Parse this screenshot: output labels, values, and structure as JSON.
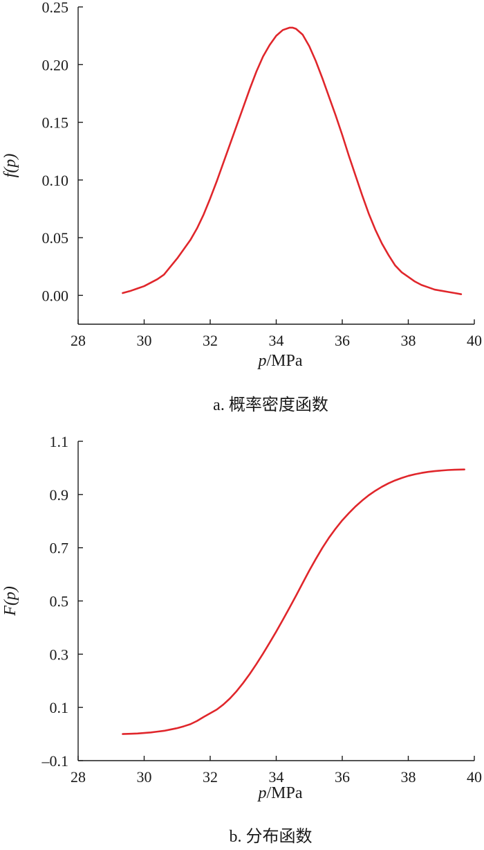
{
  "chart_data": [
    {
      "type": "line",
      "caption": "a. 概率密度函数",
      "xlabel_var": "p",
      "xlabel_unit": "/MPa",
      "ylabel": "f(p)",
      "xlim": [
        28,
        40
      ],
      "ylim": [
        -0.025,
        0.25
      ],
      "xticks": [
        "28",
        "30",
        "32",
        "34",
        "36",
        "38",
        "40"
      ],
      "yticks": [
        "0.00",
        "0.05",
        "0.10",
        "0.15",
        "0.20",
        "0.25"
      ],
      "grid": false,
      "line_color": "#e0262b",
      "series": [
        {
          "x": [
            29.35,
            29.6,
            29.8,
            30.0,
            30.2,
            30.4,
            30.6,
            30.8,
            31.0,
            31.2,
            31.4,
            31.6,
            31.8,
            32.0,
            32.2,
            32.4,
            32.6,
            32.8,
            33.0,
            33.2,
            33.4,
            33.6,
            33.8,
            34.0,
            34.2,
            34.4,
            34.5,
            34.6,
            34.8,
            35.0,
            35.2,
            35.4,
            35.6,
            35.8,
            36.0,
            36.2,
            36.4,
            36.6,
            36.8,
            37.0,
            37.2,
            37.4,
            37.6,
            37.8,
            38.0,
            38.2,
            38.4,
            38.6,
            38.8,
            39.0,
            39.2,
            39.4,
            39.6
          ],
          "y": [
            0.002,
            0.004,
            0.006,
            0.008,
            0.011,
            0.014,
            0.018,
            0.025,
            0.032,
            0.04,
            0.048,
            0.058,
            0.07,
            0.084,
            0.099,
            0.115,
            0.131,
            0.147,
            0.163,
            0.179,
            0.194,
            0.207,
            0.217,
            0.225,
            0.23,
            0.232,
            0.232,
            0.231,
            0.226,
            0.216,
            0.203,
            0.188,
            0.172,
            0.156,
            0.139,
            0.121,
            0.104,
            0.087,
            0.071,
            0.057,
            0.045,
            0.035,
            0.026,
            0.02,
            0.016,
            0.012,
            0.009,
            0.007,
            0.005,
            0.004,
            0.003,
            0.002,
            0.001
          ]
        }
      ]
    },
    {
      "type": "line",
      "caption": "b. 分布函数",
      "xlabel_var": "p",
      "xlabel_unit": "/MPa",
      "ylabel": "F(p)",
      "xlim": [
        28,
        40
      ],
      "ylim": [
        -0.1,
        1.1
      ],
      "xticks": [
        "28",
        "30",
        "32",
        "34",
        "36",
        "38",
        "40"
      ],
      "yticks": [
        "–0.1",
        "0.1",
        "0.3",
        "0.5",
        "0.7",
        "0.9",
        "1.1"
      ],
      "grid": false,
      "line_color": "#e0262b",
      "series": [
        {
          "x": [
            29.35,
            29.6,
            29.8,
            30.0,
            30.2,
            30.4,
            30.6,
            30.8,
            31.0,
            31.2,
            31.4,
            31.6,
            31.8,
            32.0,
            32.2,
            32.4,
            32.6,
            32.8,
            33.0,
            33.2,
            33.4,
            33.6,
            33.8,
            34.0,
            34.2,
            34.4,
            34.6,
            34.8,
            35.0,
            35.2,
            35.4,
            35.6,
            35.8,
            36.0,
            36.2,
            36.4,
            36.6,
            36.8,
            37.0,
            37.2,
            37.4,
            37.6,
            37.8,
            38.0,
            38.2,
            38.4,
            38.6,
            38.8,
            39.0,
            39.2,
            39.4,
            39.7
          ],
          "y": [
            0.0,
            0.001,
            0.002,
            0.004,
            0.006,
            0.009,
            0.012,
            0.017,
            0.022,
            0.029,
            0.037,
            0.049,
            0.064,
            0.078,
            0.092,
            0.111,
            0.134,
            0.161,
            0.192,
            0.226,
            0.263,
            0.302,
            0.343,
            0.385,
            0.429,
            0.474,
            0.52,
            0.567,
            0.614,
            0.658,
            0.7,
            0.738,
            0.772,
            0.803,
            0.83,
            0.855,
            0.877,
            0.897,
            0.914,
            0.929,
            0.942,
            0.953,
            0.962,
            0.97,
            0.976,
            0.981,
            0.985,
            0.988,
            0.99,
            0.992,
            0.993,
            0.994
          ]
        }
      ]
    }
  ]
}
